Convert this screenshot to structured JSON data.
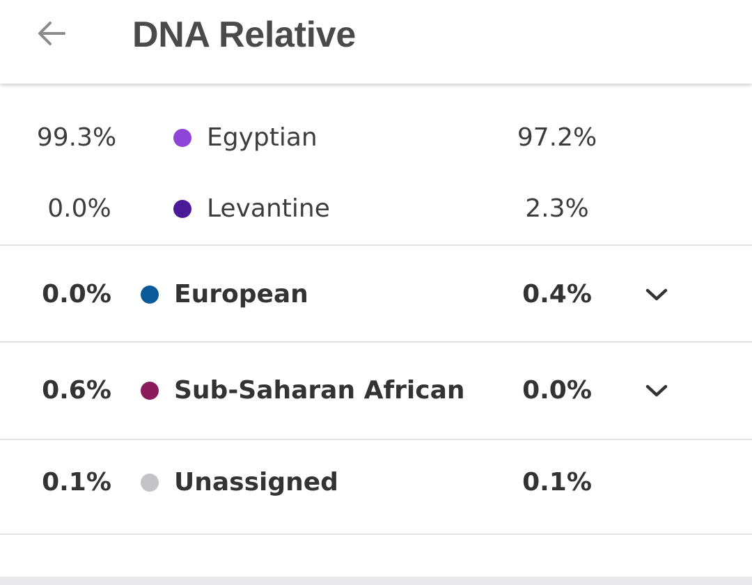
{
  "header": {
    "title": "DNA Relative",
    "back_icon": "arrow-left-icon"
  },
  "sub_regions": [
    {
      "you": "99.3%",
      "label": "Egyptian",
      "relative": "97.2%",
      "color": "#8e44d6"
    },
    {
      "you": "0.0%",
      "label": "Levantine",
      "relative": "2.3%",
      "color": "#4a1a99"
    }
  ],
  "regions": [
    {
      "you": "0.0%",
      "label": "European",
      "relative": "0.4%",
      "color": "#0a5a99",
      "expandable": true
    },
    {
      "you": "0.6%",
      "label": "Sub-Saharan African",
      "relative": "0.0%",
      "color": "#8a1a5c",
      "expandable": true
    },
    {
      "you": "0.1%",
      "label": "Unassigned",
      "relative": "0.1%",
      "color": "#c4c4c6",
      "expandable": false
    }
  ]
}
